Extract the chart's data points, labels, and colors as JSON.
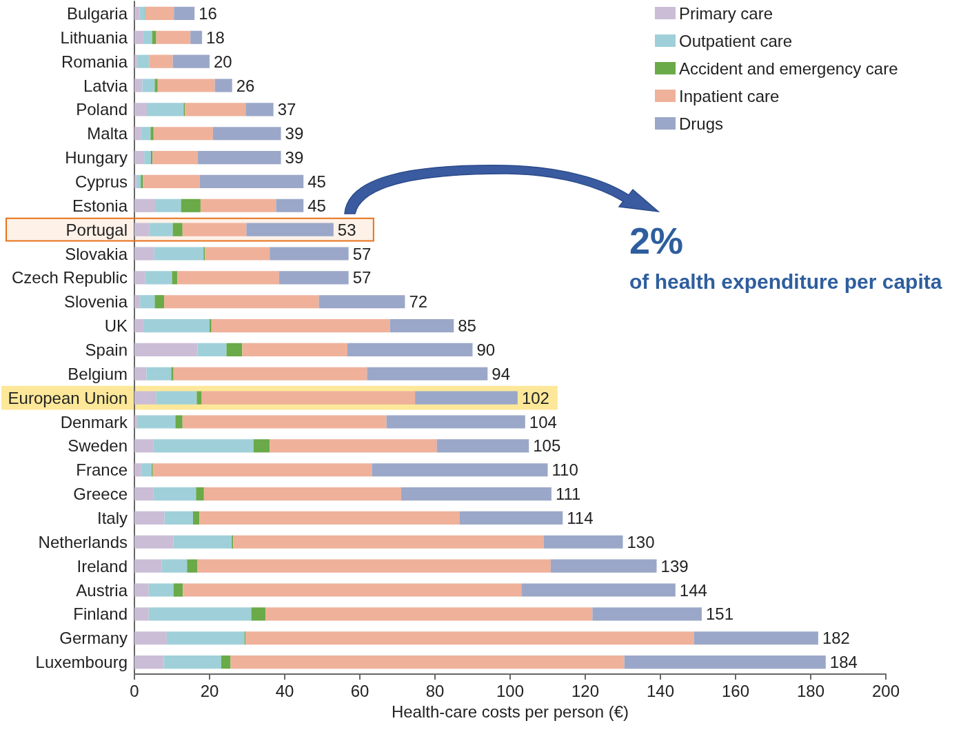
{
  "chart_data": {
    "type": "bar",
    "orientation": "horizontal",
    "stacked": true,
    "xlabel": "Health-care costs per person (€)",
    "categories": [
      "Bulgaria",
      "Lithuania",
      "Romania",
      "Latvia",
      "Poland",
      "Malta",
      "Hungary",
      "Cyprus",
      "Estonia",
      "Portugal",
      "Slovakia",
      "Czech Republic",
      "Slovenia",
      "UK",
      "Spain",
      "Belgium",
      "European Union",
      "Denmark",
      "Sweden",
      "France",
      "Greece",
      "Italy",
      "Netherlands",
      "Ireland",
      "Austria",
      "Finland",
      "Germany",
      "Luxembourg"
    ],
    "series": [
      {
        "name": "Primary care",
        "color": "#cbbdd6",
        "values": [
          1.4,
          2.4,
          0.7,
          2.1,
          3.3,
          1.8,
          2.6,
          0.6,
          5.5,
          4.0,
          5.3,
          2.8,
          1.5,
          2.4,
          16.8,
          3.2,
          5.8,
          0.7,
          5.1,
          1.8,
          5.1,
          8.0,
          10.4,
          7.3,
          3.8,
          3.8,
          8.6,
          7.8
        ]
      },
      {
        "name": "Outpatient care",
        "color": "#9fd0d9",
        "values": [
          1.4,
          2.3,
          3.2,
          3.3,
          9.8,
          2.5,
          1.8,
          1.1,
          6.9,
          6.2,
          13.1,
          7.2,
          3.9,
          17.6,
          7.7,
          6.6,
          10.8,
          10.2,
          26.6,
          2.8,
          11.3,
          7.6,
          15.5,
          6.7,
          6.6,
          27.3,
          20.7,
          15.3
        ]
      },
      {
        "name": "Accident and emergency care",
        "color": "#6aaa48",
        "values": [
          0.1,
          1.1,
          0,
          0.8,
          0.3,
          0.8,
          0.4,
          0.6,
          5.2,
          2.6,
          0.4,
          1.4,
          2.5,
          0.5,
          4.2,
          0.6,
          1.3,
          1.9,
          4.3,
          0.3,
          2.1,
          1.7,
          0.4,
          2.8,
          2.5,
          3.8,
          0.3,
          2.5
        ]
      },
      {
        "name": "Inpatient care",
        "color": "#efb19a",
        "values": [
          7.6,
          9.1,
          6.3,
          15.2,
          16.2,
          15.8,
          12.0,
          15.1,
          20.1,
          17.0,
          17.2,
          27.1,
          41.2,
          47.5,
          28.0,
          51.5,
          56.8,
          54.3,
          44.5,
          58.3,
          52.5,
          69.3,
          82.6,
          94.0,
          90.1,
          87.0,
          119.3,
          104.8
        ]
      },
      {
        "name": "Drugs",
        "color": "#9ba7c8",
        "values": [
          5.5,
          3.1,
          9.8,
          4.6,
          7.4,
          18.1,
          22.2,
          27.6,
          7.3,
          23.2,
          21.0,
          18.5,
          22.9,
          17.0,
          33.3,
          32.1,
          27.3,
          36.9,
          24.5,
          46.8,
          40.0,
          27.4,
          21.1,
          28.2,
          41.0,
          29.1,
          33.1,
          53.6
        ]
      }
    ],
    "totals": [
      "16",
      "18",
      "20",
      "26",
      "37",
      "39",
      "39",
      "45",
      "45",
      "53",
      "57",
      "57",
      "72",
      "85",
      "90",
      "94",
      "102",
      "104",
      "105",
      "110",
      "111",
      "114",
      "130",
      "139",
      "144",
      "151",
      "182",
      "184"
    ],
    "xlim": [
      0,
      200
    ],
    "xticks": [
      0,
      20,
      40,
      60,
      80,
      100,
      120,
      140,
      160,
      180,
      200
    ],
    "grid": false,
    "legend": "top right",
    "bands": [
      {
        "axis": "y",
        "from": "Portugal",
        "to": "Portugal",
        "color": "#e8711a"
      },
      {
        "axis": "y",
        "from": "European Union",
        "to": "European Union",
        "color": "#fde89a"
      }
    ],
    "annotations": [
      "2%",
      "of health expenditure per capita"
    ]
  }
}
